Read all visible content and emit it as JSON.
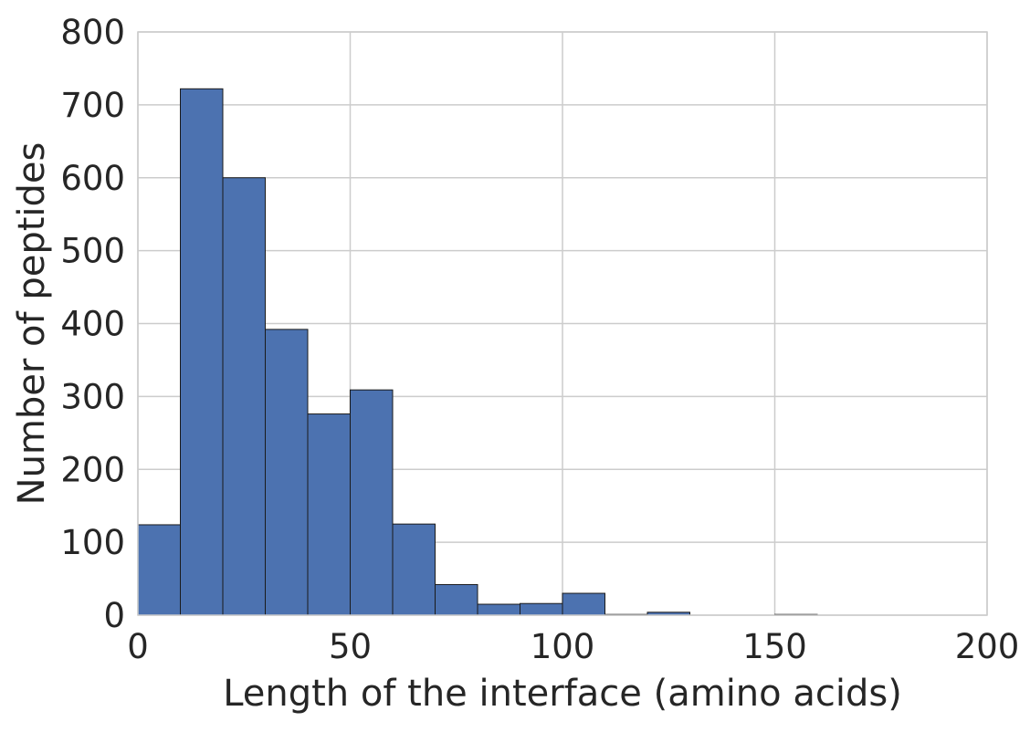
{
  "chart_data": {
    "type": "bar",
    "xlabel": "Length of the interface (amino acids)",
    "ylabel": "Number of peptides",
    "xlim": [
      0,
      200
    ],
    "ylim": [
      0,
      800
    ],
    "xticks": [
      0,
      50,
      100,
      150,
      200
    ],
    "yticks": [
      0,
      100,
      200,
      300,
      400,
      500,
      600,
      700,
      800
    ],
    "grid": true,
    "bins": [
      {
        "start": 0,
        "end": 10,
        "value": 124
      },
      {
        "start": 10,
        "end": 20,
        "value": 722
      },
      {
        "start": 20,
        "end": 30,
        "value": 600
      },
      {
        "start": 30,
        "end": 40,
        "value": 392
      },
      {
        "start": 40,
        "end": 50,
        "value": 276
      },
      {
        "start": 50,
        "end": 60,
        "value": 309
      },
      {
        "start": 60,
        "end": 70,
        "value": 125
      },
      {
        "start": 70,
        "end": 80,
        "value": 42
      },
      {
        "start": 80,
        "end": 90,
        "value": 15
      },
      {
        "start": 90,
        "end": 100,
        "value": 16
      },
      {
        "start": 100,
        "end": 110,
        "value": 30
      },
      {
        "start": 110,
        "end": 120,
        "value": 1
      },
      {
        "start": 120,
        "end": 130,
        "value": 4
      },
      {
        "start": 130,
        "end": 140,
        "value": 0
      },
      {
        "start": 140,
        "end": 150,
        "value": 0
      },
      {
        "start": 150,
        "end": 160,
        "value": 1
      },
      {
        "start": 160,
        "end": 170,
        "value": 0
      },
      {
        "start": 170,
        "end": 180,
        "value": 0
      },
      {
        "start": 180,
        "end": 190,
        "value": 0
      },
      {
        "start": 190,
        "end": 200,
        "value": 0
      }
    ],
    "colors": {
      "bar": "#4C72B0",
      "bar_edge": "#1a1a1a",
      "grid": "#cccccc",
      "frame": "#cccccc",
      "text": "#262626"
    }
  }
}
